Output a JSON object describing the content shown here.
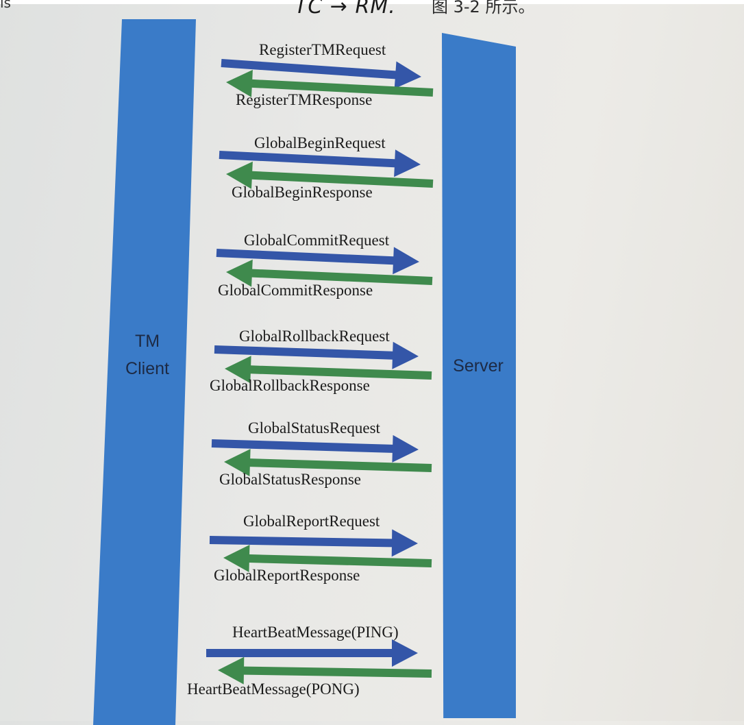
{
  "header": {
    "handwritten_note": "TC → RM.",
    "cjk_fragment": "图 3-2 所示。",
    "corner_fragment": "is"
  },
  "lanes": {
    "client": {
      "label_line1": "TM",
      "label_line2": "Client"
    },
    "server": {
      "label": "Server"
    }
  },
  "colors": {
    "lane": "#3a7bc8",
    "request_arrow": "#3456a8",
    "response_arrow": "#3f8a4d"
  },
  "messages": [
    {
      "request": "RegisterTMRequest",
      "response": "RegisterTMResponse"
    },
    {
      "request": "GlobalBeginRequest",
      "response": "GlobalBeginResponse"
    },
    {
      "request": "GlobalCommitRequest",
      "response": "GlobalCommitResponse"
    },
    {
      "request": "GlobalRollbackRequest",
      "response": "GlobalRollbackResponse"
    },
    {
      "request": "GlobalStatusRequest",
      "response": "GlobalStatusResponse"
    },
    {
      "request": "GlobalReportRequest",
      "response": "GlobalReportResponse"
    },
    {
      "request": "HeartBeatMessage(PING)",
      "response": "HeartBeatMessage(PONG)"
    }
  ]
}
